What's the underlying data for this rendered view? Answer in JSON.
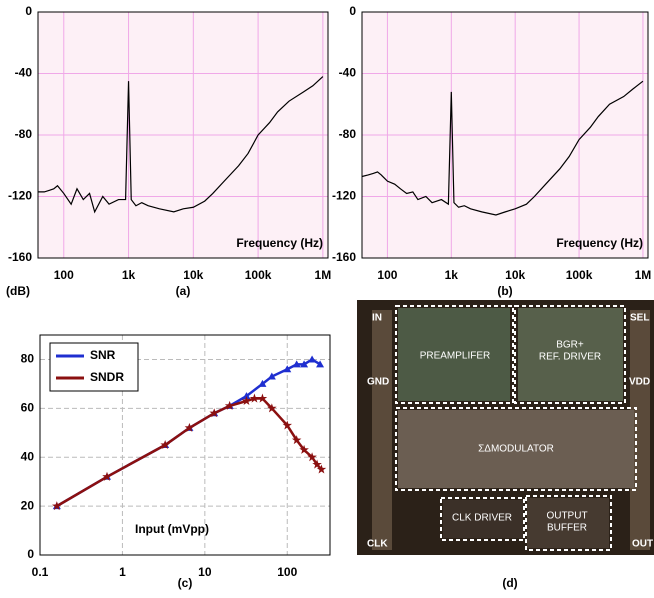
{
  "chart_data": [
    {
      "type": "line",
      "xscale": "log",
      "caption": "(a)",
      "ylabel": "(dB)",
      "annotation": "Frequency (Hz)",
      "grid": true,
      "grid_color": "#f0a8e8",
      "background": "#fdf0f6",
      "color": "#000000",
      "x": [
        40,
        50,
        60,
        70,
        80,
        100,
        130,
        160,
        200,
        250,
        300,
        400,
        500,
        700,
        900,
        1000,
        1100,
        1300,
        1600,
        2000,
        3000,
        5000,
        7000,
        10000,
        15000,
        20000,
        30000,
        50000,
        70000,
        100000,
        150000,
        200000,
        300000,
        500000,
        700000,
        1000000
      ],
      "values": [
        -117,
        -117,
        -116,
        -115,
        -113,
        -118,
        -125,
        -115,
        -122,
        -118,
        -130,
        -120,
        -125,
        -122,
        -122,
        -45,
        -122,
        -126,
        -124,
        -126,
        -128,
        -130,
        -128,
        -127,
        -123,
        -118,
        -110,
        -100,
        -92,
        -80,
        -72,
        -65,
        -58,
        -52,
        -48,
        -42
      ],
      "xlim": [
        40,
        1200000
      ],
      "ylim": [
        -160,
        0
      ],
      "xticks": [
        100,
        {
          "value": 1000,
          "label": "1k"
        },
        {
          "value": 10000,
          "label": "10k"
        },
        {
          "value": 100000,
          "label": "100k"
        },
        {
          "value": 1000000,
          "label": "1M"
        }
      ],
      "yticks": [
        0,
        -40,
        -80,
        -120,
        -160
      ]
    },
    {
      "type": "line",
      "xscale": "log",
      "caption": "(b)",
      "annotation": "Frequency (Hz)",
      "grid": true,
      "grid_color": "#f0a8e8",
      "background": "#fdf0f6",
      "color": "#000000",
      "x": [
        40,
        50,
        60,
        70,
        80,
        100,
        130,
        160,
        200,
        250,
        300,
        400,
        500,
        700,
        900,
        1000,
        1100,
        1300,
        1600,
        2000,
        3000,
        5000,
        7000,
        10000,
        15000,
        20000,
        30000,
        50000,
        70000,
        100000,
        150000,
        200000,
        300000,
        500000,
        700000,
        1000000
      ],
      "values": [
        -107,
        -106,
        -105,
        -104,
        -106,
        -110,
        -112,
        -115,
        -118,
        -117,
        -122,
        -120,
        -124,
        -122,
        -125,
        -52,
        -124,
        -127,
        -126,
        -128,
        -130,
        -132,
        -130,
        -128,
        -125,
        -120,
        -112,
        -102,
        -94,
        -83,
        -75,
        -68,
        -60,
        -55,
        -50,
        -45
      ],
      "xlim": [
        40,
        1200000
      ],
      "ylim": [
        -160,
        0
      ],
      "xticks": [
        100,
        {
          "value": 1000,
          "label": "1k"
        },
        {
          "value": 10000,
          "label": "10k"
        },
        {
          "value": 100000,
          "label": "100k"
        },
        {
          "value": 1000000,
          "label": "1M"
        }
      ],
      "yticks": [
        0,
        -40,
        -80,
        -120,
        -160
      ]
    },
    {
      "type": "line",
      "xscale": "log",
      "caption": "(c)",
      "annotation": "Input (mVpp)",
      "grid": true,
      "grid_color": "#bbbbbb",
      "background": "#ffffff",
      "legend": "upper left",
      "xlim": [
        0.1,
        330
      ],
      "ylim": [
        0,
        90
      ],
      "xticks": [
        0.1,
        1,
        10,
        100
      ],
      "yticks": [
        0,
        20,
        40,
        60,
        80
      ],
      "series": [
        {
          "name": "SNR",
          "color": "#1f2fd0",
          "marker": "triangle",
          "x": [
            0.16,
            0.65,
            3.3,
            6.5,
            13,
            20,
            32,
            50,
            65,
            100,
            130,
            160,
            200,
            250
          ],
          "values": [
            20,
            32,
            45,
            52,
            58,
            61,
            65,
            70,
            73,
            76,
            78,
            78,
            80,
            78
          ]
        },
        {
          "name": "SNDR",
          "color": "#8b1010",
          "marker": "star",
          "x": [
            0.16,
            0.65,
            3.3,
            6.5,
            13,
            20,
            32,
            40,
            50,
            65,
            100,
            130,
            160,
            200,
            230,
            260
          ],
          "values": [
            20,
            32,
            45,
            52,
            58,
            61,
            63,
            64,
            64,
            60,
            53,
            47,
            43,
            40,
            37,
            35
          ]
        }
      ]
    }
  ],
  "die_photo": {
    "caption": "(d)",
    "blocks": [
      "PREAMPLIFER",
      "BGR+",
      "REF. DRIVER",
      "ΣΔMODULATOR",
      "CLK DRIVER",
      "OUTPUT",
      "BUFFER"
    ],
    "pins": [
      "IN",
      "SEL",
      "GND",
      "VDD",
      "CLK",
      "OUT"
    ]
  }
}
